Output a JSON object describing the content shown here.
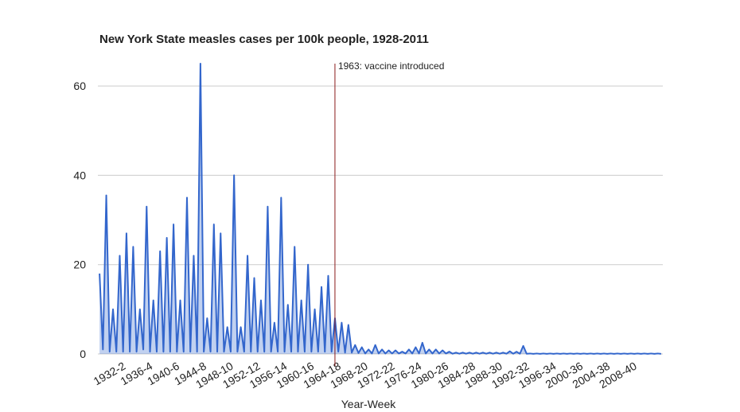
{
  "chart_data": {
    "type": "line",
    "title": "New York State measles cases per 100k people, 1928-2011",
    "x_label": "Year-Week",
    "categories": [
      null,
      null,
      null,
      null,
      null,
      null,
      null,
      null,
      "1932-2",
      null,
      null,
      null,
      null,
      null,
      null,
      null,
      "1936-4",
      null,
      null,
      null,
      null,
      null,
      null,
      null,
      "1940-6",
      null,
      null,
      null,
      null,
      null,
      null,
      null,
      "1944-8",
      null,
      null,
      null,
      null,
      null,
      null,
      null,
      "1948-10",
      null,
      null,
      null,
      null,
      null,
      null,
      null,
      "1952-12",
      null,
      null,
      null,
      null,
      null,
      null,
      null,
      "1956-14",
      null,
      null,
      null,
      null,
      null,
      null,
      null,
      "1960-16",
      null,
      null,
      null,
      null,
      null,
      null,
      null,
      "1964-18",
      null,
      null,
      null,
      null,
      null,
      null,
      null,
      "1968-20",
      null,
      null,
      null,
      null,
      null,
      null,
      null,
      "1972-22",
      null,
      null,
      null,
      null,
      null,
      null,
      null,
      "1976-24",
      null,
      null,
      null,
      null,
      null,
      null,
      null,
      "1980-26",
      null,
      null,
      null,
      null,
      null,
      null,
      null,
      "1984-28",
      null,
      null,
      null,
      null,
      null,
      null,
      null,
      "1988-30",
      null,
      null,
      null,
      null,
      null,
      null,
      null,
      "1992-32",
      null,
      null,
      null,
      null,
      null,
      null,
      null,
      "1996-34",
      null,
      null,
      null,
      null,
      null,
      null,
      null,
      "2000-36",
      null,
      null,
      null,
      null,
      null,
      null,
      null,
      "2004-38",
      null,
      null,
      null,
      null,
      null,
      null,
      null,
      "2008-40",
      null,
      null,
      null,
      null,
      null,
      null,
      null
    ],
    "values": [
      18,
      1,
      35.5,
      0.5,
      10,
      0.5,
      22,
      0.5,
      27,
      0.5,
      24,
      0.5,
      10,
      1,
      33,
      0.5,
      12,
      0.5,
      23,
      0.5,
      26,
      0.5,
      29,
      0.5,
      12,
      0.5,
      35,
      0.5,
      22,
      0.5,
      65,
      0.5,
      8,
      0.5,
      29,
      0.5,
      27,
      0.5,
      6,
      0.5,
      40,
      0.5,
      6,
      0.5,
      22,
      0.5,
      17,
      0.5,
      12,
      0.5,
      33,
      0.5,
      7,
      0.5,
      35,
      0.5,
      11,
      0.5,
      24,
      0.5,
      12,
      0.5,
      20,
      0.5,
      10,
      0.5,
      15,
      0.5,
      17.5,
      0.5,
      8,
      0.5,
      7,
      0.3,
      6.5,
      0.3,
      2,
      0.2,
      1.5,
      0.1,
      1,
      0.1,
      2,
      0.1,
      1,
      0.1,
      0.8,
      0.1,
      0.8,
      0.1,
      0.5,
      0.1,
      1,
      0.1,
      1.5,
      0.1,
      2.5,
      0.1,
      1,
      0.1,
      1,
      0.1,
      0.8,
      0.1,
      0.5,
      0.05,
      0.3,
      0.05,
      0.3,
      0.05,
      0.3,
      0.05,
      0.3,
      0.05,
      0.3,
      0.05,
      0.3,
      0.05,
      0.3,
      0.05,
      0.3,
      0.05,
      0.6,
      0.05,
      0.5,
      0.05,
      1.8,
      0.05,
      0.1,
      0.02,
      0.1,
      0.02,
      0.1,
      0.02,
      0.1,
      0.02,
      0.1,
      0.02,
      0.1,
      0.02,
      0.1,
      0.02,
      0.1,
      0.02,
      0.1,
      0.02,
      0.1,
      0.02,
      0.1,
      0.02,
      0.1,
      0.02,
      0.1,
      0.02,
      0.1,
      0.02,
      0.1,
      0.02,
      0.1,
      0.02,
      0.1,
      0.02,
      0.1,
      0.02,
      0.1,
      0.02,
      0.1,
      0.02
    ],
    "color": "#3366cc",
    "ylim": [
      0,
      65
    ],
    "yticks": [
      0,
      20,
      40,
      60
    ],
    "grid": true,
    "annotation": {
      "text": "1963: vaccine introduced",
      "at": 70,
      "color": "#8b1a1a"
    }
  }
}
